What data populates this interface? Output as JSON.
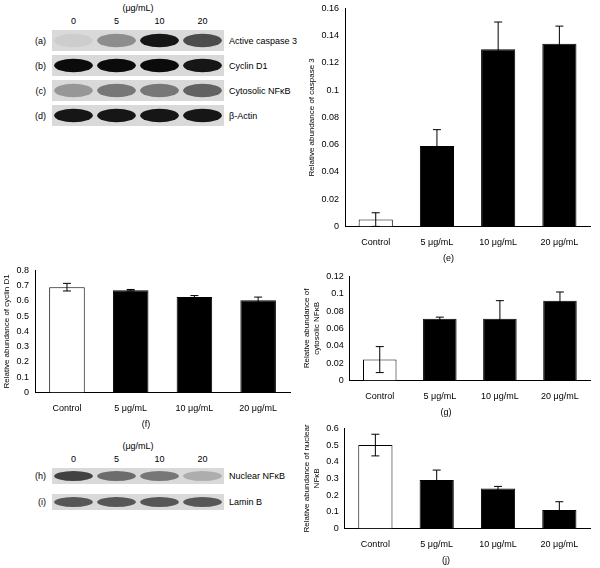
{
  "chart_data": [
    {
      "type": "bar",
      "title": "(e)",
      "y_label": "Relative abundance of caspase 3",
      "categories": [
        "Control",
        "5 μg/mL",
        "10 μg/mL",
        "20 μg/mL"
      ],
      "values": [
        0.005,
        0.059,
        0.13,
        0.134
      ],
      "errors": [
        0.005,
        0.012,
        0.02,
        0.013
      ],
      "colors": [
        "#ffffff",
        "#000000",
        "#000000",
        "#000000"
      ],
      "ylim": [
        0,
        0.16
      ],
      "yticks": [
        0,
        0.02,
        0.04,
        0.06,
        0.08,
        0.1,
        0.12,
        0.14,
        0.16
      ],
      "grid": false
    },
    {
      "type": "bar",
      "title": "(f)",
      "y_label": "Relative abundance of cyclin D1",
      "categories": [
        "Control",
        "5 μg/mL",
        "10 μg/mL",
        "20 μg/mL"
      ],
      "values": [
        0.69,
        0.67,
        0.625,
        0.605
      ],
      "errors": [
        0.025,
        0.005,
        0.01,
        0.02
      ],
      "colors": [
        "#ffffff",
        "#000000",
        "#000000",
        "#000000"
      ],
      "ylim": [
        0,
        0.8
      ],
      "yticks": [
        0,
        0.1,
        0.2,
        0.3,
        0.4,
        0.5,
        0.6,
        0.7,
        0.8
      ],
      "grid": false
    },
    {
      "type": "bar",
      "title": "(g)",
      "y_label": [
        "Relative abundance of",
        "cytosolic NFκB"
      ],
      "categories": [
        "Control",
        "5 μg/mL",
        "10 μg/mL",
        "20 μg/mL"
      ],
      "values": [
        0.024,
        0.071,
        0.071,
        0.092
      ],
      "errors": [
        0.015,
        0.002,
        0.021,
        0.01
      ],
      "colors": [
        "#ffffff",
        "#000000",
        "#000000",
        "#000000"
      ],
      "ylim": [
        0,
        0.12
      ],
      "yticks": [
        0,
        0.02,
        0.04,
        0.06,
        0.08,
        0.1,
        0.12
      ],
      "grid": false
    },
    {
      "type": "bar",
      "title": "(j)",
      "y_label": [
        "Relative abundance of nuclear",
        "NFκB"
      ],
      "categories": [
        "Control",
        "5 μg/mL",
        "10 μg/mL",
        "20 μg/mL"
      ],
      "values": [
        0.5,
        0.29,
        0.24,
        0.11
      ],
      "errors": [
        0.065,
        0.06,
        0.012,
        0.05
      ],
      "colors": [
        "#ffffff",
        "#000000",
        "#000000",
        "#000000"
      ],
      "ylim": [
        0,
        0.6
      ],
      "yticks": [
        0,
        0.1,
        0.2,
        0.3,
        0.4,
        0.5,
        0.6
      ],
      "grid": false
    }
  ],
  "blots": [
    {
      "unit_label": "(μg/mL)",
      "lanes": [
        "0",
        "5",
        "10",
        "20"
      ],
      "rows": [
        {
          "panel": "(a)",
          "label": "Active caspase 3",
          "intensity": [
            0.05,
            0.35,
            0.9,
            0.65
          ]
        },
        {
          "panel": "(b)",
          "label": "Cyclin D1",
          "intensity": [
            0.95,
            0.95,
            0.95,
            0.9
          ]
        },
        {
          "panel": "(c)",
          "label": "Cytosolic NFκB",
          "intensity": [
            0.3,
            0.45,
            0.45,
            0.55
          ]
        },
        {
          "panel": "(d)",
          "label": "β-Actin",
          "intensity": [
            0.9,
            0.9,
            0.9,
            0.9
          ]
        }
      ]
    },
    {
      "unit_label": "(μg/mL)",
      "lanes": [
        "0",
        "5",
        "10",
        "20"
      ],
      "rows": [
        {
          "panel": "(h)",
          "label": "Nuclear NFκB",
          "intensity": [
            0.7,
            0.5,
            0.45,
            0.2
          ]
        },
        {
          "panel": "(i)",
          "label": "Lamin B",
          "intensity": [
            0.6,
            0.6,
            0.6,
            0.6
          ]
        }
      ]
    }
  ]
}
